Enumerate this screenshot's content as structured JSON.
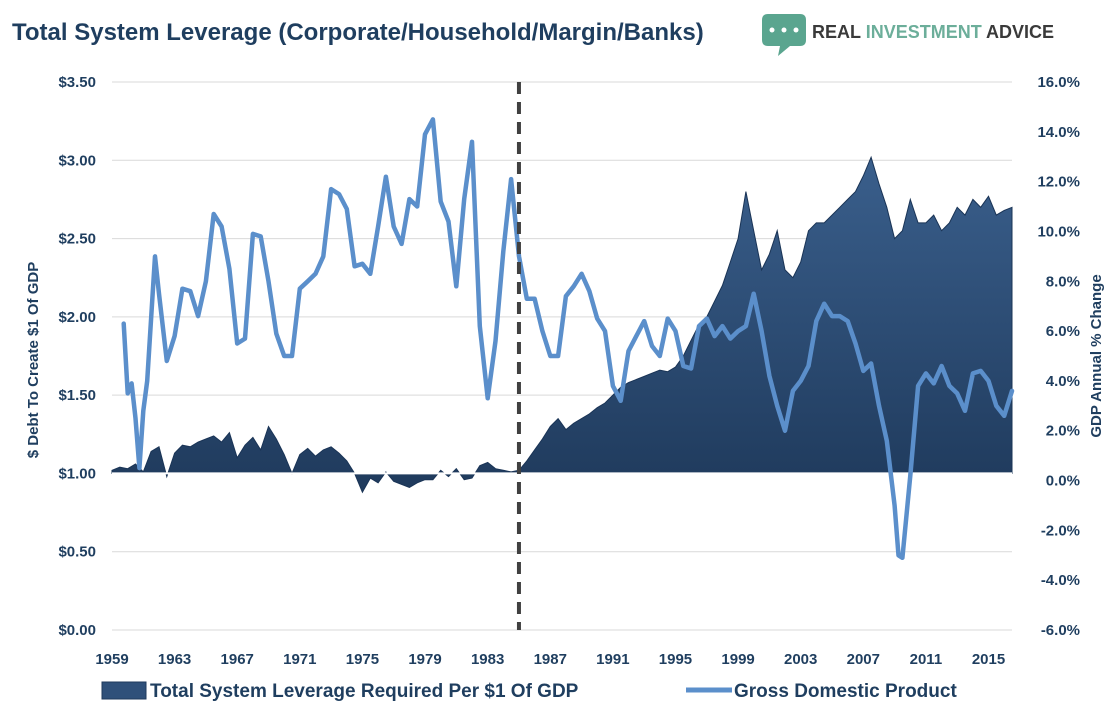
{
  "title": "Total System Leverage (Corporate/Household/Margin/Banks)",
  "brand": {
    "name_part1": "REAL ",
    "name_part2": "INVESTMENT",
    "name_part3": " ADVICE",
    "logo_icon": "speech-bubble-dots-icon",
    "colors": {
      "logo": "#5aa58f",
      "text_dark": "#3a3a3a",
      "text_accent": "#6cae9a"
    }
  },
  "colors": {
    "leverage_fill": "#2f507a",
    "leverage_fill_dark": "#1f3a5c",
    "gdp_line": "#5b8fcb",
    "grid": "#d9d9d9",
    "text": "#1f3e5f",
    "divider": "#404040"
  },
  "chart_data": {
    "type": "area",
    "title": "Total System Leverage (Corporate/Household/Margin/Banks)",
    "xlabel": "",
    "ylabel": "$ Debt To Create $1 Of GDP",
    "ylabel_right": "GDP Annual % Change",
    "x_ticks": [
      "1959",
      "1963",
      "1967",
      "1971",
      "1975",
      "1979",
      "1983",
      "1987",
      "1991",
      "1995",
      "1999",
      "2003",
      "2007",
      "2011",
      "2015"
    ],
    "xlim": [
      1959,
      2016.5
    ],
    "ylim": [
      0,
      3.5
    ],
    "ylim_right": [
      -6,
      16
    ],
    "y_ticks": [
      "$0.00",
      "$0.50",
      "$1.00",
      "$1.50",
      "$2.00",
      "$2.50",
      "$3.00",
      "$3.50"
    ],
    "y_ticks_right": [
      "-6.0%",
      "-4.0%",
      "-2.0%",
      "0.0%",
      "2.0%",
      "4.0%",
      "6.0%",
      "8.0%",
      "10.0%",
      "12.0%",
      "14.0%",
      "16.0%"
    ],
    "grid": true,
    "legend_position": "bottom",
    "divider_year": 1985,
    "series": [
      {
        "name": "Total System Leverage Required Per $1 Of GDP",
        "axis": "left",
        "baseline": 1.0,
        "x": [
          1959.0,
          1959.5,
          1960.0,
          1960.5,
          1961.0,
          1961.5,
          1962.0,
          1962.5,
          1963.0,
          1963.5,
          1964.0,
          1964.5,
          1965.0,
          1965.5,
          1966.0,
          1966.5,
          1967.0,
          1967.5,
          1968.0,
          1968.5,
          1969.0,
          1969.5,
          1970.0,
          1970.5,
          1971.0,
          1971.5,
          1972.0,
          1972.5,
          1973.0,
          1973.5,
          1974.0,
          1974.5,
          1975.0,
          1975.5,
          1976.0,
          1976.5,
          1977.0,
          1977.5,
          1978.0,
          1978.5,
          1979.0,
          1979.5,
          1980.0,
          1980.5,
          1981.0,
          1981.5,
          1982.0,
          1982.5,
          1983.0,
          1983.5,
          1984.0,
          1984.5,
          1985.0,
          1985.5,
          1986.0,
          1986.5,
          1987.0,
          1987.5,
          1988.0,
          1988.5,
          1989.0,
          1989.5,
          1990.0,
          1990.5,
          1991.0,
          1991.5,
          1992.0,
          1992.5,
          1993.0,
          1993.5,
          1994.0,
          1994.5,
          1995.0,
          1995.5,
          1996.0,
          1996.5,
          1997.0,
          1997.5,
          1998.0,
          1998.5,
          1999.0,
          1999.5,
          2000.0,
          2000.5,
          2001.0,
          2001.5,
          2002.0,
          2002.5,
          2003.0,
          2003.5,
          2004.0,
          2004.5,
          2005.0,
          2005.5,
          2006.0,
          2006.5,
          2007.0,
          2007.5,
          2008.0,
          2008.5,
          2009.0,
          2009.5,
          2010.0,
          2010.5,
          2011.0,
          2011.5,
          2012.0,
          2012.5,
          2013.0,
          2013.5,
          2014.0,
          2014.5,
          2015.0,
          2015.5,
          2016.0,
          2016.5
        ],
        "values": [
          1.02,
          1.04,
          1.03,
          1.06,
          1.01,
          1.14,
          1.17,
          0.98,
          1.13,
          1.18,
          1.17,
          1.2,
          1.22,
          1.24,
          1.2,
          1.26,
          1.1,
          1.18,
          1.23,
          1.15,
          1.3,
          1.22,
          1.12,
          1.0,
          1.12,
          1.16,
          1.11,
          1.15,
          1.17,
          1.13,
          1.08,
          1.0,
          0.88,
          0.97,
          0.94,
          1.01,
          0.95,
          0.93,
          0.91,
          0.94,
          0.96,
          0.96,
          1.02,
          0.98,
          1.03,
          0.96,
          0.97,
          1.05,
          1.07,
          1.03,
          1.02,
          1.01,
          1.02,
          1.08,
          1.15,
          1.22,
          1.3,
          1.35,
          1.28,
          1.32,
          1.35,
          1.38,
          1.42,
          1.45,
          1.5,
          1.55,
          1.58,
          1.6,
          1.62,
          1.64,
          1.66,
          1.65,
          1.68,
          1.75,
          1.85,
          1.95,
          2.0,
          2.1,
          2.2,
          2.35,
          2.5,
          2.8,
          2.55,
          2.3,
          2.4,
          2.55,
          2.3,
          2.25,
          2.35,
          2.55,
          2.6,
          2.6,
          2.65,
          2.7,
          2.75,
          2.8,
          2.9,
          3.02,
          2.85,
          2.7,
          2.5,
          2.55,
          2.75,
          2.6,
          2.6,
          2.65,
          2.55,
          2.6,
          2.7,
          2.65,
          2.75,
          2.7,
          2.77,
          2.65,
          2.68,
          2.7
        ]
      },
      {
        "name": "Gross Domestic Product",
        "axis": "right",
        "x": [
          1959.75,
          1960.0,
          1960.25,
          1960.5,
          1960.75,
          1961.0,
          1961.25,
          1961.5,
          1961.75,
          1962.0,
          1962.5,
          1963.0,
          1963.5,
          1964.0,
          1964.5,
          1965.0,
          1965.5,
          1966.0,
          1966.5,
          1967.0,
          1967.5,
          1968.0,
          1968.5,
          1969.0,
          1969.5,
          1970.0,
          1970.5,
          1971.0,
          1971.5,
          1972.0,
          1972.5,
          1973.0,
          1973.5,
          1974.0,
          1974.5,
          1975.0,
          1975.5,
          1976.0,
          1976.5,
          1977.0,
          1977.5,
          1978.0,
          1978.5,
          1979.0,
          1979.5,
          1980.0,
          1980.5,
          1981.0,
          1981.5,
          1982.0,
          1982.5,
          1983.0,
          1983.5,
          1984.0,
          1984.5,
          1985.0,
          1985.5,
          1986.0,
          1986.5,
          1987.0,
          1987.5,
          1988.0,
          1988.5,
          1989.0,
          1989.5,
          1990.0,
          1990.5,
          1991.0,
          1991.5,
          1992.0,
          1992.5,
          1993.0,
          1993.5,
          1994.0,
          1994.5,
          1995.0,
          1995.5,
          1996.0,
          1996.5,
          1997.0,
          1997.5,
          1998.0,
          1998.5,
          1999.0,
          1999.5,
          2000.0,
          2000.5,
          2001.0,
          2001.5,
          2002.0,
          2002.5,
          2003.0,
          2003.5,
          2004.0,
          2004.5,
          2005.0,
          2005.5,
          2006.0,
          2006.5,
          2007.0,
          2007.5,
          2008.0,
          2008.5,
          2009.0,
          2009.25,
          2009.5,
          2010.0,
          2010.5,
          2011.0,
          2011.5,
          2012.0,
          2012.5,
          2013.0,
          2013.5,
          2014.0,
          2014.5,
          2015.0,
          2015.5,
          2016.0,
          2016.5
        ],
        "values": [
          6.3,
          3.5,
          3.9,
          2.5,
          0.5,
          2.8,
          4.0,
          6.5,
          9.0,
          7.5,
          4.8,
          5.8,
          7.7,
          7.6,
          6.6,
          8.0,
          10.7,
          10.2,
          8.5,
          5.5,
          5.7,
          9.9,
          9.8,
          8.0,
          5.9,
          5.0,
          5.0,
          7.7,
          8.0,
          8.3,
          9.0,
          11.7,
          11.5,
          10.9,
          8.6,
          8.7,
          8.3,
          10.2,
          12.2,
          10.2,
          9.5,
          11.3,
          11.0,
          13.9,
          14.5,
          11.2,
          10.4,
          7.8,
          11.3,
          13.6,
          6.2,
          3.3,
          5.6,
          9.2,
          12.1,
          9.0,
          7.3,
          7.3,
          6.0,
          5.0,
          5.0,
          7.4,
          7.8,
          8.3,
          7.6,
          6.5,
          6.0,
          3.8,
          3.2,
          5.2,
          5.8,
          6.4,
          5.4,
          5.0,
          6.5,
          6.0,
          4.6,
          4.5,
          6.2,
          6.5,
          5.8,
          6.2,
          5.7,
          6.0,
          6.2,
          7.5,
          6.0,
          4.2,
          3.0,
          2.0,
          3.6,
          4.0,
          4.6,
          6.4,
          7.1,
          6.6,
          6.6,
          6.4,
          5.5,
          4.4,
          4.7,
          3.0,
          1.6,
          -1.0,
          -3.0,
          -3.1,
          0.2,
          3.8,
          4.3,
          3.9,
          4.6,
          3.8,
          3.5,
          2.8,
          4.3,
          4.4,
          4.0,
          3.0,
          2.6,
          3.6
        ]
      }
    ]
  }
}
